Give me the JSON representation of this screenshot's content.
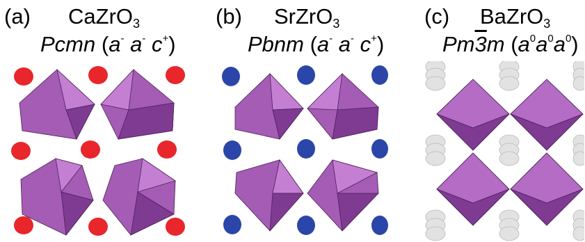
{
  "panels": [
    {
      "label": "(a)",
      "formula": "CaZrO",
      "formula_sub": "3",
      "sg_name": "Pcmn",
      "tilt": [
        [
          "a",
          "-"
        ],
        [
          "a",
          "-"
        ],
        [
          "c",
          "+"
        ]
      ],
      "atom_color": "#e8262b"
    },
    {
      "label": "(b)",
      "formula": "SrZrO",
      "formula_sub": "3",
      "sg_name": "Pbnm",
      "tilt": [
        [
          "a",
          "-"
        ],
        [
          "a",
          "-"
        ],
        [
          "c",
          "+"
        ]
      ],
      "atom_color": "#2b46a8"
    },
    {
      "label": "(c)",
      "formula": "BaZrO",
      "formula_sub": "3",
      "sg_name_parts": [
        "Pm",
        "3",
        "m"
      ],
      "tilt": [
        [
          "a",
          "0"
        ],
        [
          "a",
          "0"
        ],
        [
          "a",
          "0"
        ]
      ],
      "atom_color": "#e2e2e2"
    }
  ],
  "colors": {
    "octahedron": "#a55cb5",
    "octahedron_dark": "#7e3b91",
    "octahedron_light": "#c47fd2",
    "edge": "#4a1f57"
  }
}
